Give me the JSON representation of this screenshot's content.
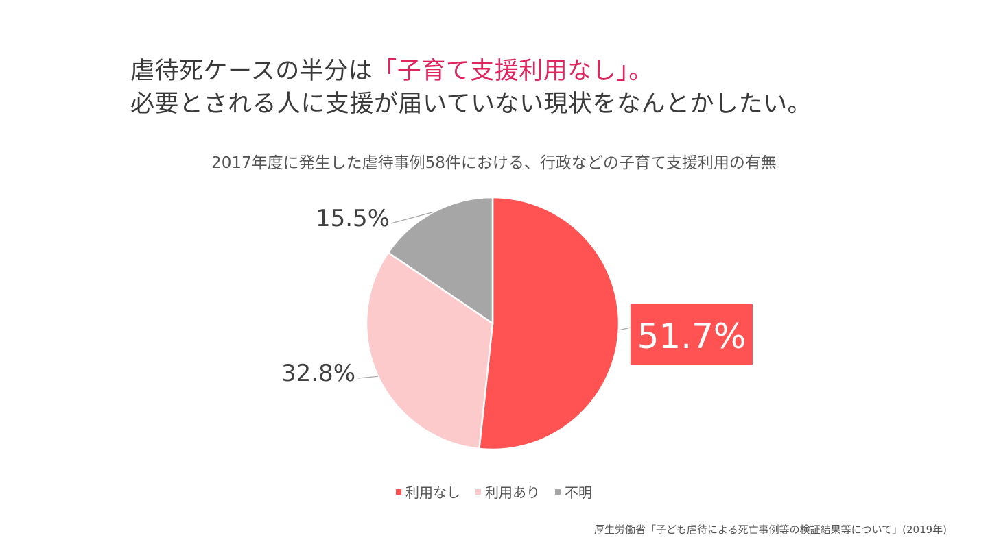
{
  "headline": {
    "line1_prefix": "虐待死ケースの半分は",
    "line1_highlight": "「子育て支援利用なし」。",
    "line2": "必要とされる人に支援が届いていない現状をなんとかしたい。"
  },
  "chart_data": {
    "type": "pie",
    "title": "2017年度に発生した虐待事例58件における、行政などの子育て支援利用の有無",
    "slices": [
      {
        "label": "利用なし",
        "value": 51.7,
        "display": "51.7%",
        "color": "#ff5252"
      },
      {
        "label": "利用あり",
        "value": 32.8,
        "display": "32.8%",
        "color": "#fccaca"
      },
      {
        "label": "不明",
        "value": 15.5,
        "display": "15.5%",
        "color": "#a6a6a6"
      }
    ],
    "legend_position": "bottom",
    "start": "12 o'clock, clockwise"
  },
  "source": "厚生労働省「子ども虐待による死亡事例等の検証結果等について」(2019年)"
}
